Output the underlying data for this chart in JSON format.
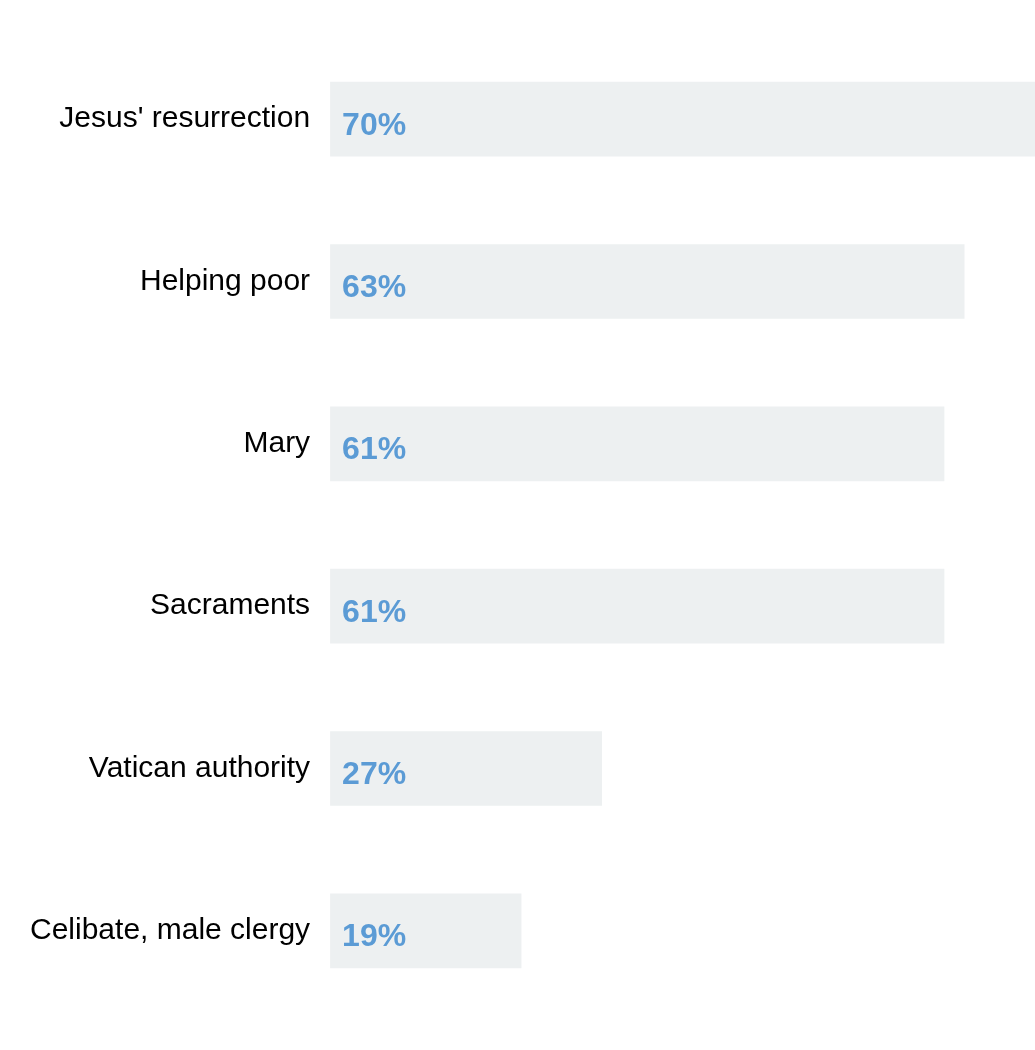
{
  "chart_data": {
    "type": "bar",
    "orientation": "horizontal",
    "categories": [
      "Jesus' resurrection",
      "Helping poor",
      "Mary",
      "Sacraments",
      "Vatican authority",
      "Celibate, male clergy"
    ],
    "values": [
      70,
      63,
      61,
      61,
      27,
      19
    ],
    "value_labels": [
      "70%",
      "63%",
      "61%",
      "61%",
      "27%",
      "19%"
    ],
    "color": "#edf0f1",
    "grid": false,
    "legend": false,
    "tick_labels": "y"
  }
}
